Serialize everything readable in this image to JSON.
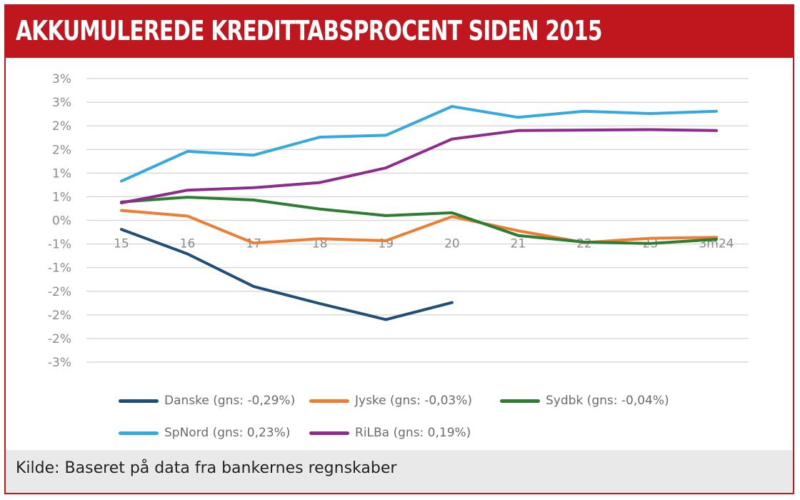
{
  "header": {
    "title": "AKKUMULEREDE KREDITTABSPROCENT SIDEN 2015"
  },
  "footer": {
    "source": "Kilde: Baseret på data fra bankernes regnskaber"
  },
  "colors": {
    "brand_red": "#c0161d",
    "grid": "#d9d9d9",
    "axis_text": "#8a8a8a"
  },
  "chart_data": {
    "type": "line",
    "title": "AKKUMULEREDE KREDITTABSPROCENT SIDEN 2015",
    "xlabel": "",
    "ylabel": "",
    "ylim": [
      -3.0,
      3.0
    ],
    "y_ticks": [
      3.0,
      2.5,
      2.0,
      1.5,
      1.0,
      0.5,
      0.0,
      -0.5,
      -1.0,
      -1.5,
      -2.0,
      -2.5,
      -3.0
    ],
    "y_tick_labels": [
      "3%",
      "3%",
      "2%",
      "2%",
      "1%",
      "1%",
      "0%",
      "-1%",
      "-1%",
      "-2%",
      "-2%",
      "-2%",
      "-3%"
    ],
    "categories": [
      "15",
      "16",
      "17",
      "18",
      "19",
      "20",
      "21",
      "22",
      "23",
      "3m24"
    ],
    "grid": true,
    "legend_position": "bottom",
    "series": [
      {
        "name": "Danske (gns: -0,29%)",
        "color": "#1f4e79",
        "values": [
          -0.19,
          -0.71,
          -1.4,
          -1.76,
          -2.1,
          -1.74,
          null,
          null,
          null,
          null
        ]
      },
      {
        "name": "Jyske (gns: -0,03%)",
        "color": "#ed7d31",
        "values": [
          0.21,
          0.09,
          -0.48,
          -0.39,
          -0.43,
          0.08,
          -0.22,
          -0.47,
          -0.38,
          -0.36
        ]
      },
      {
        "name": "Sydbk (gns: -0,04%)",
        "color": "#2e7d32",
        "values": [
          0.39,
          0.49,
          0.43,
          0.24,
          0.1,
          0.16,
          -0.32,
          -0.46,
          -0.49,
          -0.4
        ]
      },
      {
        "name": "SpNord (gns: 0,23%)",
        "color": "#35a8e0",
        "values": [
          0.83,
          1.46,
          1.38,
          1.76,
          1.8,
          2.41,
          2.18,
          2.31,
          2.26,
          2.31
        ]
      },
      {
        "name": "RiLBa (gns: 0,19%)",
        "color": "#8e2c8e",
        "values": [
          0.37,
          0.64,
          0.69,
          0.8,
          1.11,
          1.72,
          1.9,
          1.91,
          1.92,
          1.9
        ]
      }
    ]
  }
}
